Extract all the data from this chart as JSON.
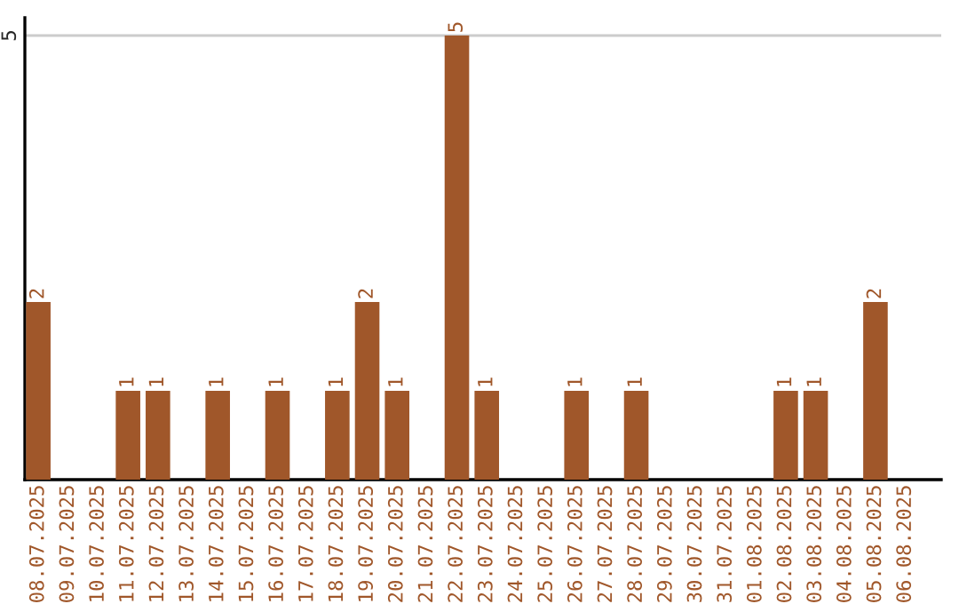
{
  "chart_data": {
    "type": "bar",
    "categories": [
      "08.07.2025",
      "09.07.2025",
      "10.07.2025",
      "11.07.2025",
      "12.07.2025",
      "13.07.2025",
      "14.07.2025",
      "15.07.2025",
      "16.07.2025",
      "17.07.2025",
      "18.07.2025",
      "19.07.2025",
      "20.07.2025",
      "21.07.2025",
      "22.07.2025",
      "23.07.2025",
      "24.07.2025",
      "25.07.2025",
      "26.07.2025",
      "27.07.2025",
      "28.07.2025",
      "29.07.2025",
      "30.07.2025",
      "31.07.2025",
      "01.08.2025",
      "02.08.2025",
      "03.08.2025",
      "04.08.2025",
      "05.08.2025",
      "06.08.2025"
    ],
    "values": [
      2,
      0,
      0,
      1,
      1,
      0,
      1,
      0,
      1,
      0,
      1,
      2,
      1,
      0,
      5,
      1,
      0,
      0,
      1,
      0,
      1,
      0,
      0,
      0,
      0,
      1,
      1,
      0,
      2,
      0
    ],
    "value_labels": [
      "2",
      null,
      null,
      "1",
      "1",
      null,
      "1",
      null,
      "1",
      null,
      "1",
      "2",
      "1",
      null,
      "5",
      "1",
      null,
      null,
      "1",
      null,
      "1",
      null,
      null,
      null,
      null,
      "1",
      "1",
      null,
      "2",
      null
    ],
    "color": "#a0572a",
    "ylim": [
      0,
      5.2
    ],
    "yticks": [
      5
    ],
    "grid": "y",
    "legend": false
  }
}
